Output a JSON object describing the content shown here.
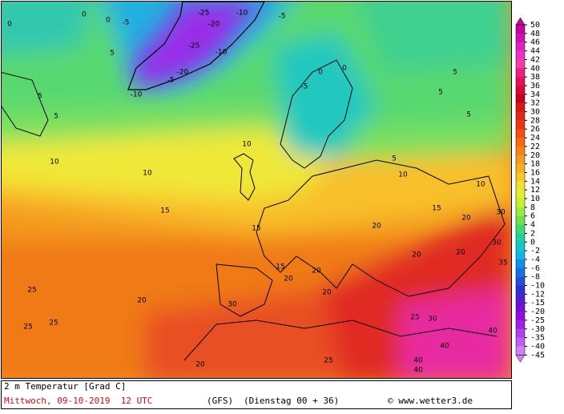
{
  "map": {
    "labels": [
      0,
      0,
      0,
      -5,
      -25,
      -10,
      -20,
      -5,
      -25,
      -10,
      -20,
      -5,
      -10,
      5,
      5,
      5,
      0,
      0,
      -5,
      5,
      5,
      5,
      10,
      10,
      10,
      15,
      15,
      15,
      5,
      10,
      20,
      15,
      20,
      30,
      35,
      25,
      25,
      25,
      20,
      30,
      20,
      25,
      30,
      40,
      40,
      40,
      40,
      20,
      25,
      20,
      20,
      10,
      30,
      20,
      20
    ]
  },
  "colorbar": {
    "levels": [
      50,
      48,
      46,
      44,
      42,
      40,
      38,
      36,
      34,
      32,
      30,
      28,
      26,
      24,
      22,
      20,
      18,
      16,
      14,
      12,
      10,
      8,
      6,
      4,
      2,
      0,
      -2,
      -4,
      -6,
      -8,
      -10,
      -12,
      -15,
      -20,
      -25,
      -30,
      -35,
      -40,
      -45
    ],
    "colors": [
      "#c800a0",
      "#d010b0",
      "#e020c0",
      "#f030c8",
      "#f040a8",
      "#f02080",
      "#e8105a",
      "#d80838",
      "#c80020",
      "#d81818",
      "#e02818",
      "#e83818",
      "#f05010",
      "#f86810",
      "#f88018",
      "#f89820",
      "#f8b020",
      "#f8c828",
      "#f0e030",
      "#e0f030",
      "#c8f030",
      "#a0e840",
      "#70e050",
      "#40d870",
      "#20d0a0",
      "#10c8c8",
      "#10b8e0",
      "#1090e8",
      "#1870e0",
      "#2050d8",
      "#3030d0",
      "#5020d0",
      "#7010d8",
      "#9010e0",
      "#a020e8",
      "#b040f0",
      "#c060f0",
      "#d080f8"
    ]
  },
  "footer": {
    "title": "2 m Temperatur [Grad C]",
    "date": "Mittwoch, 09-10-2019  12 UTC",
    "model": "(GFS)",
    "run": "(Dienstag 00 + 36)",
    "credit": "© www.wetter3.de"
  }
}
